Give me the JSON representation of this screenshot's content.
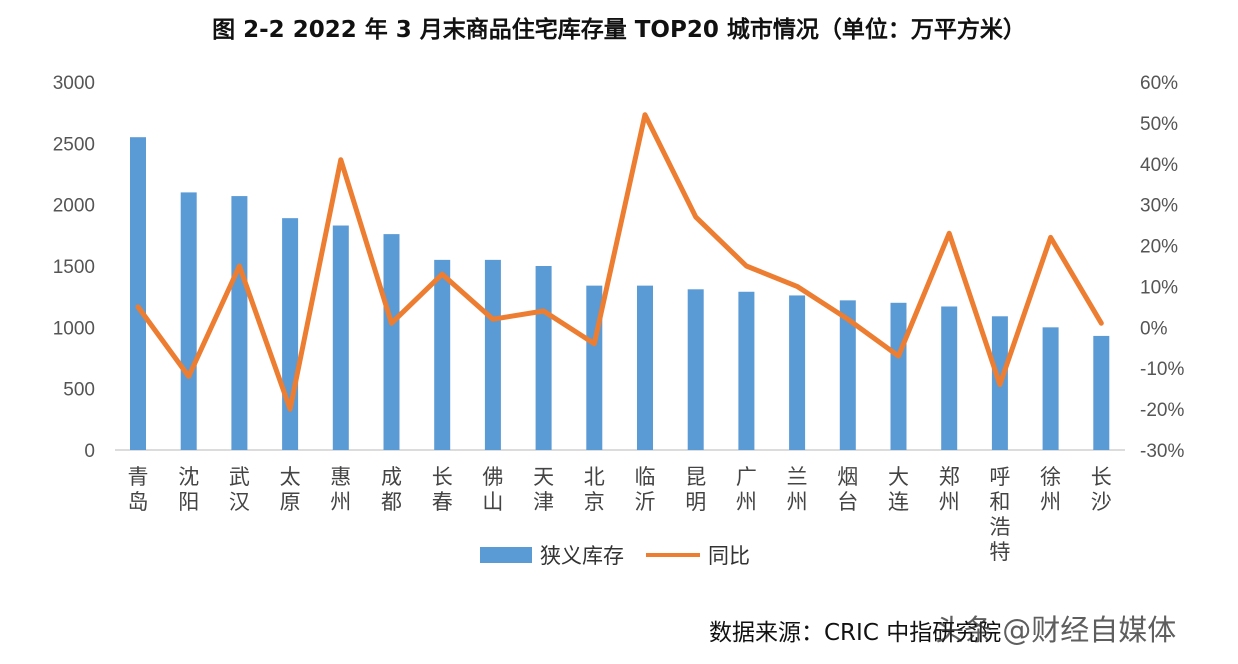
{
  "chart_data": {
    "type": "bar",
    "title": "图 2-2  2022 年 3 月末商品住宅库存量 TOP20 城市情况（单位：万平方米）",
    "categories": [
      "青岛",
      "沈阳",
      "武汉",
      "太原",
      "惠州",
      "成都",
      "长春",
      "佛山",
      "天津",
      "北京",
      "临沂",
      "昆明",
      "广州",
      "兰州",
      "烟台",
      "大连",
      "郑州",
      "呼和浩特",
      "徐州",
      "长沙"
    ],
    "series": [
      {
        "name": "狭义库存",
        "type": "bar",
        "axis": "left",
        "color": "#5B9BD5",
        "values": [
          2550,
          2100,
          2070,
          1890,
          1830,
          1760,
          1550,
          1550,
          1500,
          1340,
          1340,
          1310,
          1290,
          1260,
          1220,
          1200,
          1170,
          1090,
          1000,
          930
        ]
      },
      {
        "name": "同比",
        "type": "line",
        "axis": "right",
        "color": "#ED7D31",
        "values": [
          5,
          -12,
          15,
          -20,
          41,
          1,
          13,
          2,
          4,
          -4,
          52,
          27,
          15,
          10,
          2,
          -7,
          23,
          -14,
          22,
          1
        ]
      }
    ],
    "y_left": {
      "min": 0,
      "max": 3000,
      "ticks": [
        "0",
        "500",
        "1000",
        "1500",
        "2000",
        "2500",
        "3000"
      ]
    },
    "y_right": {
      "min": -30,
      "max": 60,
      "unit": "%",
      "ticks": [
        "-30%",
        "-20%",
        "-10%",
        "0%",
        "10%",
        "20%",
        "30%",
        "40%",
        "50%",
        "60%"
      ]
    },
    "grid": false,
    "legend_position": "bottom"
  },
  "source_text": "数据来源：CRIC 中指研究院",
  "watermark_text": "头条 @财经自媒体"
}
